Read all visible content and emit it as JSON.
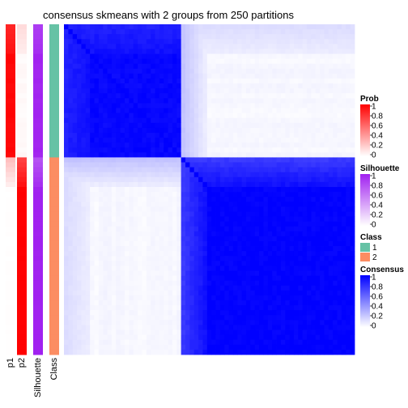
{
  "chart_data": {
    "type": "heatmap",
    "title": "consensus skmeans with 2 groups from 250 partitions",
    "annotation_columns": [
      "p1",
      "p2",
      "Silhouette",
      "Class"
    ],
    "groups": [
      {
        "class": "1",
        "n_samples": 27,
        "p1_high": true
      },
      {
        "class": "2",
        "n_samples": 40,
        "p1_high": false
      }
    ],
    "legends": [
      {
        "title": "Prob",
        "ticks": [
          "1",
          "0.8",
          "0.6",
          "0.4",
          "0.2",
          "0"
        ],
        "color_low": "#ffffff",
        "color_high": "#ff0000"
      },
      {
        "title": "Silhouette",
        "ticks": [
          "1",
          "0.8",
          "0.6",
          "0.4",
          "0.2",
          "0"
        ],
        "color_low": "#ffffff",
        "color_high": "#a020f0"
      },
      {
        "title": "Class",
        "items": [
          {
            "label": "1",
            "color": "#66c2a5"
          },
          {
            "label": "2",
            "color": "#fc8d62"
          }
        ]
      },
      {
        "title": "Consensus",
        "ticks": [
          "1",
          "0.8",
          "0.6",
          "0.4",
          "0.2",
          "0"
        ],
        "color_low": "#ffffff",
        "color_high": "#0000ff"
      }
    ],
    "value_range": [
      0,
      1
    ],
    "grid": false
  }
}
